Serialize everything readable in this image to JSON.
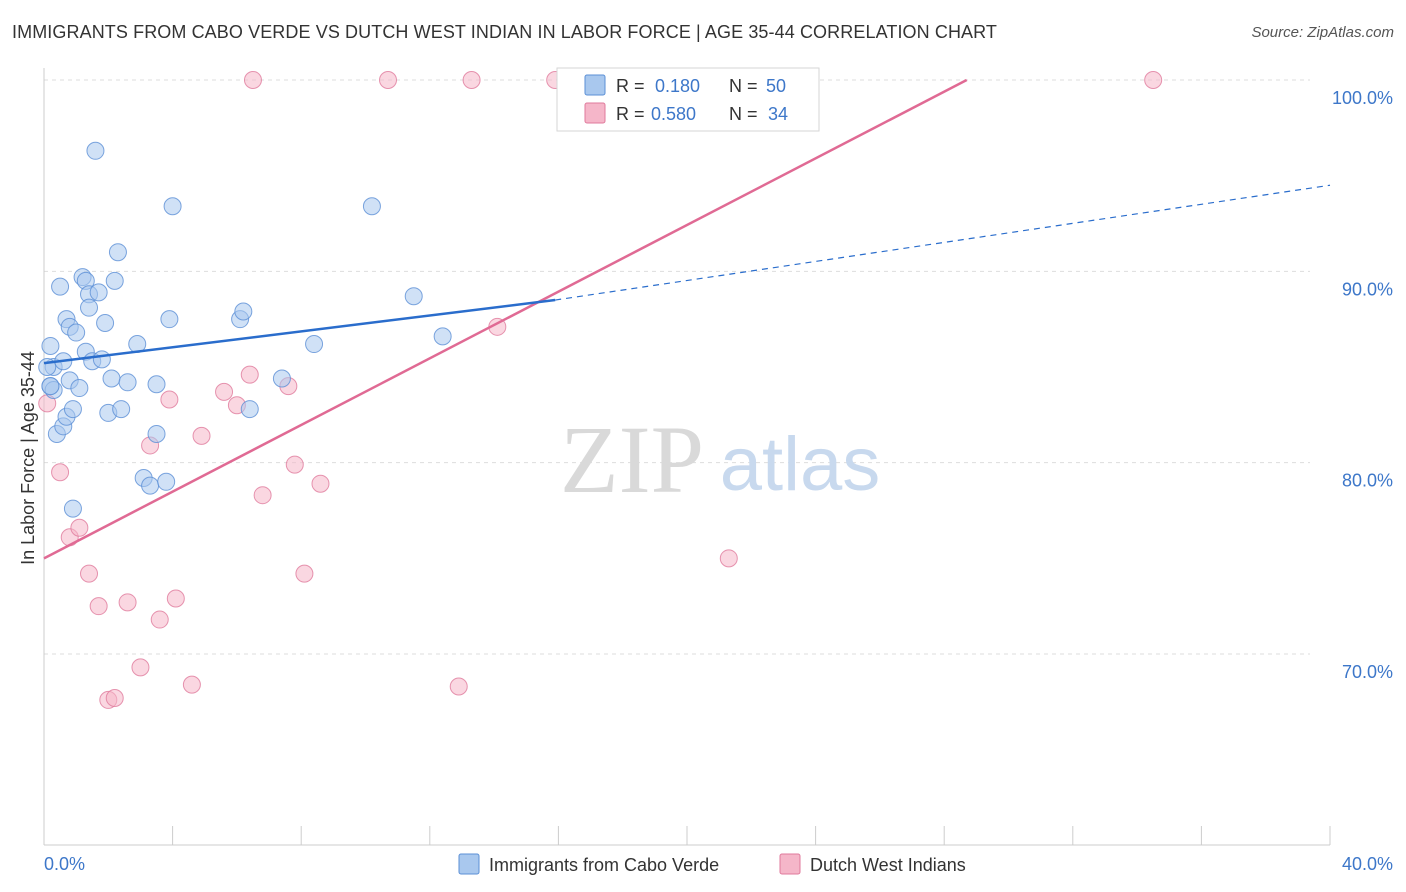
{
  "title": "IMMIGRANTS FROM CABO VERDE VS DUTCH WEST INDIAN IN LABOR FORCE | AGE 35-44 CORRELATION CHART",
  "source": "Source: ZipAtlas.com",
  "watermark": {
    "zip": "ZIP",
    "atlas": "atlas"
  },
  "colors": {
    "blue_fill": "#a9c8ee",
    "blue_stroke": "#5b8fd6",
    "blue_line": "#2a6dcc",
    "pink_fill": "#f5b6c9",
    "pink_stroke": "#e07a9c",
    "pink_line": "#e06a94",
    "tick_label": "#3d77c9",
    "grid": "#dddddd"
  },
  "legend": {
    "rows": [
      {
        "r_label": "R =",
        "r_value": "0.180",
        "n_label": "N =",
        "n_value": "50"
      },
      {
        "r_label": "R =",
        "r_value": "0.580",
        "n_label": "N =",
        "n_value": "34"
      }
    ]
  },
  "chart_data": {
    "type": "scatter",
    "title": "IMMIGRANTS FROM CABO VERDE VS DUTCH WEST INDIAN IN LABOR FORCE | AGE 35-44 CORRELATION CHART",
    "xlabel": "",
    "ylabel": "In Labor Force | Age 35-44",
    "xlim": [
      0,
      40
    ],
    "ylim": [
      59.5,
      100.5
    ],
    "x_tick_labels": [
      "0.0%",
      "40.0%"
    ],
    "y_ticks": [
      70,
      80,
      90,
      100
    ],
    "y_tick_labels": [
      "70.0%",
      "80.0%",
      "90.0%",
      "100.0%"
    ],
    "grid": true,
    "legend_position": "top-center",
    "series": [
      {
        "name": "Immigrants from Cabo Verde",
        "color": "#a9c8ee",
        "points": [
          [
            0.2,
            86.1
          ],
          [
            0.3,
            85.0
          ],
          [
            0.2,
            84.0
          ],
          [
            0.3,
            83.8
          ],
          [
            0.4,
            81.5
          ],
          [
            0.5,
            89.2
          ],
          [
            0.6,
            85.3
          ],
          [
            0.6,
            81.9
          ],
          [
            0.7,
            82.4
          ],
          [
            0.7,
            87.5
          ],
          [
            0.8,
            87.1
          ],
          [
            0.8,
            84.3
          ],
          [
            0.9,
            82.8
          ],
          [
            0.9,
            77.6
          ],
          [
            1.0,
            86.8
          ],
          [
            1.1,
            83.9
          ],
          [
            1.2,
            89.7
          ],
          [
            1.3,
            89.5
          ],
          [
            1.3,
            85.8
          ],
          [
            1.4,
            88.8
          ],
          [
            1.4,
            88.1
          ],
          [
            1.5,
            85.3
          ],
          [
            1.6,
            96.3
          ],
          [
            1.7,
            88.9
          ],
          [
            1.8,
            85.4
          ],
          [
            1.9,
            87.3
          ],
          [
            2.0,
            82.6
          ],
          [
            2.1,
            84.4
          ],
          [
            2.2,
            89.5
          ],
          [
            2.3,
            91.0
          ],
          [
            2.4,
            82.8
          ],
          [
            2.6,
            84.2
          ],
          [
            2.9,
            86.2
          ],
          [
            3.1,
            79.2
          ],
          [
            3.3,
            78.8
          ],
          [
            3.5,
            81.5
          ],
          [
            3.5,
            84.1
          ],
          [
            3.8,
            79.0
          ],
          [
            3.9,
            87.5
          ],
          [
            4.0,
            93.4
          ],
          [
            6.1,
            87.5
          ],
          [
            6.2,
            87.9
          ],
          [
            6.4,
            82.8
          ],
          [
            7.4,
            84.4
          ],
          [
            8.4,
            86.2
          ],
          [
            10.2,
            93.4
          ],
          [
            11.5,
            88.7
          ],
          [
            12.4,
            86.6
          ],
          [
            0.1,
            85.0
          ],
          [
            0.2,
            84.0
          ]
        ]
      },
      {
        "name": "Dutch West Indians",
        "color": "#f5b6c9",
        "points": [
          [
            0.1,
            83.1
          ],
          [
            0.5,
            79.5
          ],
          [
            0.8,
            76.1
          ],
          [
            1.1,
            76.6
          ],
          [
            1.4,
            74.2
          ],
          [
            1.7,
            72.5
          ],
          [
            2.0,
            67.6
          ],
          [
            2.2,
            67.7
          ],
          [
            2.6,
            72.7
          ],
          [
            3.0,
            69.3
          ],
          [
            3.3,
            80.9
          ],
          [
            3.6,
            71.8
          ],
          [
            3.9,
            83.3
          ],
          [
            4.1,
            72.9
          ],
          [
            4.6,
            68.4
          ],
          [
            4.9,
            81.4
          ],
          [
            5.6,
            83.7
          ],
          [
            6.0,
            83.0
          ],
          [
            6.4,
            84.6
          ],
          [
            6.5,
            100.0
          ],
          [
            6.8,
            78.3
          ],
          [
            7.6,
            84.0
          ],
          [
            7.8,
            79.9
          ],
          [
            8.1,
            74.2
          ],
          [
            8.6,
            78.9
          ],
          [
            10.7,
            100.0
          ],
          [
            12.9,
            68.3
          ],
          [
            13.3,
            100.0
          ],
          [
            14.1,
            87.1
          ],
          [
            15.9,
            100.0
          ],
          [
            16.3,
            100.0
          ],
          [
            16.6,
            100.0
          ],
          [
            21.3,
            75.0
          ],
          [
            34.5,
            100.0
          ]
        ]
      }
    ],
    "trend_lines": [
      {
        "series": "Immigrants from Cabo Verde",
        "solid": [
          [
            0,
            85.2
          ],
          [
            15.9,
            88.5
          ]
        ],
        "dashed": [
          [
            15.9,
            88.5
          ],
          [
            40,
            94.5
          ]
        ]
      },
      {
        "series": "Dutch West Indians",
        "solid": [
          [
            0,
            75.0
          ],
          [
            28.7,
            100.0
          ]
        ]
      }
    ]
  }
}
